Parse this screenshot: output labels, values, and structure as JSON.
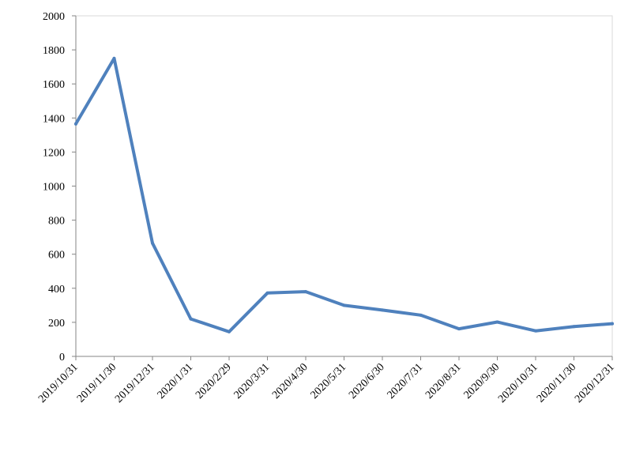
{
  "chart_data": {
    "type": "line",
    "title": "",
    "xlabel": "",
    "ylabel": "",
    "ylim": [
      0,
      2000
    ],
    "yticks": [
      0,
      200,
      400,
      600,
      800,
      1000,
      1200,
      1400,
      1600,
      1800,
      2000
    ],
    "grid": false,
    "categories": [
      "2019/10/31",
      "2019/11/30",
      "2019/12/31",
      "2020/1/31",
      "2020/2/29",
      "2020/3/31",
      "2020/4/30",
      "2020/5/31",
      "2020/6/30",
      "2020/7/31",
      "2020/8/31",
      "2020/9/30",
      "2020/10/31",
      "2020/11/30",
      "2020/12/31"
    ],
    "series": [
      {
        "values": [
          1365,
          1750,
          665,
          220,
          145,
          372,
          380,
          300,
          272,
          242,
          162,
          202,
          150,
          175,
          192
        ],
        "color": "#4f81bd"
      }
    ]
  }
}
